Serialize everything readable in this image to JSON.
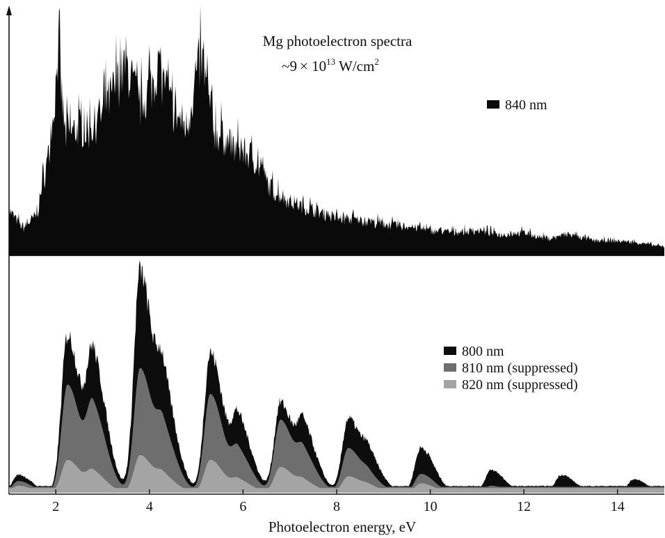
{
  "chart_data": [
    {
      "type": "area",
      "title": "Mg photoelectron spectra",
      "subtitle_parts": [
        "~9",
        "×",
        " 10",
        "13",
        " W/cm",
        "2"
      ],
      "xlim": [
        1,
        15
      ],
      "legend_position": "top-right",
      "series": [
        {
          "name": "840 nm",
          "color": "#0a0a0a",
          "points": [
            [
              1.0,
              0.22
            ],
            [
              1.3,
              0.13
            ],
            [
              1.6,
              0.2
            ],
            [
              1.9,
              0.55
            ],
            [
              2.05,
              0.98
            ],
            [
              2.2,
              0.58
            ],
            [
              2.5,
              0.62
            ],
            [
              2.7,
              0.6
            ],
            [
              2.9,
              0.65
            ],
            [
              3.2,
              0.78
            ],
            [
              3.5,
              0.93
            ],
            [
              3.8,
              0.72
            ],
            [
              4.2,
              0.9
            ],
            [
              4.5,
              0.7
            ],
            [
              4.8,
              0.62
            ],
            [
              5.1,
              0.96
            ],
            [
              5.4,
              0.6
            ],
            [
              5.8,
              0.52
            ],
            [
              6.2,
              0.48
            ],
            [
              6.6,
              0.32
            ],
            [
              7.0,
              0.26
            ],
            [
              7.5,
              0.22
            ],
            [
              8.0,
              0.18
            ],
            [
              8.5,
              0.17
            ],
            [
              9.0,
              0.15
            ],
            [
              9.5,
              0.14
            ],
            [
              10.0,
              0.12
            ],
            [
              10.5,
              0.11
            ],
            [
              11.0,
              0.12
            ],
            [
              11.5,
              0.1
            ],
            [
              12.0,
              0.11
            ],
            [
              12.5,
              0.08
            ],
            [
              13.0,
              0.1
            ],
            [
              13.5,
              0.07
            ],
            [
              14.0,
              0.07
            ],
            [
              14.5,
              0.06
            ],
            [
              15.0,
              0.04
            ]
          ]
        }
      ]
    },
    {
      "type": "area",
      "xlabel": "Photoelectron energy, eV",
      "xlim": [
        1,
        15
      ],
      "xticks": [
        2,
        4,
        6,
        8,
        10,
        12,
        14
      ],
      "legend_position": "right",
      "peaks": [
        1.2,
        2.25,
        2.8,
        3.8,
        4.3,
        5.3,
        5.9,
        6.8,
        7.3,
        8.25,
        8.7,
        9.8,
        11.3,
        12.8,
        14.35
      ],
      "series": [
        {
          "name": "800 nm",
          "color": "#0d0d0d",
          "peak_heights": [
            0.08,
            0.7,
            0.55,
            0.98,
            0.4,
            0.62,
            0.3,
            0.4,
            0.25,
            0.33,
            0.12,
            0.2,
            0.1,
            0.08,
            0.06
          ]
        },
        {
          "name": "810 nm (suppressed)",
          "color": "#6e6e6e",
          "peak_heights": [
            0.05,
            0.46,
            0.33,
            0.53,
            0.22,
            0.42,
            0.16,
            0.31,
            0.14,
            0.19,
            0.05,
            0.08,
            0.03,
            0.02,
            0.01
          ]
        },
        {
          "name": "820 nm (suppressed)",
          "color": "#a4a4a4",
          "peak_heights": [
            0.03,
            0.14,
            0.08,
            0.16,
            0.06,
            0.14,
            0.05,
            0.11,
            0.04,
            0.07,
            0.02,
            0.04,
            0.01,
            0.01,
            0.01
          ]
        }
      ]
    }
  ]
}
